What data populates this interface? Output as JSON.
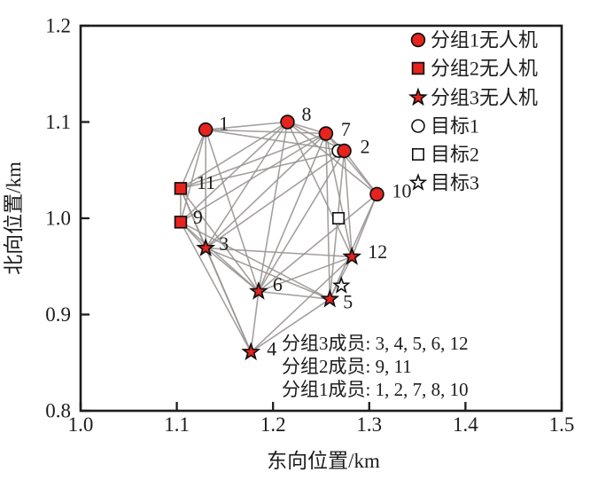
{
  "chart_data": {
    "type": "scatter",
    "title": "",
    "xlabel": "东向位置/km",
    "ylabel": "北向位置/km",
    "xlim": [
      1.0,
      1.5
    ],
    "ylim": [
      0.8,
      1.2
    ],
    "x_ticks": [
      1.0,
      1.1,
      1.2,
      1.3,
      1.4,
      1.5
    ],
    "y_ticks": [
      0.8,
      0.9,
      1.0,
      1.1,
      1.2
    ],
    "x_tick_labels": [
      "1.0",
      "1.1",
      "1.2",
      "1.3",
      "1.4",
      "1.5"
    ],
    "y_tick_labels": [
      "0.8",
      "0.9",
      "1.0",
      "1.1",
      "1.2"
    ],
    "grid": false,
    "legend_position": "top-right",
    "colors": {
      "marker_fill": "#e8231e",
      "marker_stroke": "#111111",
      "edge": "#989492",
      "axis": "#1c1c1c",
      "background": "#ffffff"
    },
    "series": [
      {
        "name": "分组1无人机",
        "marker": "circle",
        "members": [
          1,
          2,
          7,
          8,
          10
        ],
        "points": [
          {
            "id": 1,
            "x": 1.13,
            "y": 1.092,
            "label": "1",
            "label_dx": 15,
            "label_dy": -7
          },
          {
            "id": 2,
            "x": 1.274,
            "y": 1.07,
            "label": "2",
            "label_dx": 18,
            "label_dy": -5
          },
          {
            "id": 7,
            "x": 1.255,
            "y": 1.088,
            "label": "7",
            "label_dx": 17,
            "label_dy": -5
          },
          {
            "id": 8,
            "x": 1.215,
            "y": 1.1,
            "label": "8",
            "label_dx": 16,
            "label_dy": -9
          },
          {
            "id": 10,
            "x": 1.308,
            "y": 1.025,
            "label": "10",
            "label_dx": 17,
            "label_dy": -4
          }
        ]
      },
      {
        "name": "分组2无人机",
        "marker": "square",
        "members": [
          9,
          11
        ],
        "points": [
          {
            "id": 9,
            "x": 1.104,
            "y": 0.996,
            "label": "9",
            "label_dx": 14,
            "label_dy": -6
          },
          {
            "id": 11,
            "x": 1.104,
            "y": 1.031,
            "label": "11",
            "label_dx": 18,
            "label_dy": -7
          }
        ]
      },
      {
        "name": "分组3无人机",
        "marker": "star",
        "members": [
          3,
          4,
          5,
          6,
          12
        ],
        "points": [
          {
            "id": 3,
            "x": 1.13,
            "y": 0.969,
            "label": "3",
            "label_dx": 15,
            "label_dy": -5
          },
          {
            "id": 4,
            "x": 1.177,
            "y": 0.861,
            "label": "4",
            "label_dx": 18,
            "label_dy": -4
          },
          {
            "id": 5,
            "x": 1.259,
            "y": 0.916,
            "label": "5",
            "label_dx": 15,
            "label_dy": 3
          },
          {
            "id": 6,
            "x": 1.185,
            "y": 0.924,
            "label": "6",
            "label_dx": 16,
            "label_dy": -8
          },
          {
            "id": 12,
            "x": 1.282,
            "y": 0.96,
            "label": "12",
            "label_dx": 18,
            "label_dy": -6
          }
        ]
      }
    ],
    "targets": [
      {
        "name": "目标1",
        "marker": "circle",
        "x": 1.268,
        "y": 1.07
      },
      {
        "name": "目标2",
        "marker": "square",
        "x": 1.268,
        "y": 1.0
      },
      {
        "name": "目标3",
        "marker": "star",
        "x": 1.271,
        "y": 0.93
      }
    ],
    "edges": [
      [
        1,
        2
      ],
      [
        1,
        3
      ],
      [
        1,
        6
      ],
      [
        1,
        7
      ],
      [
        1,
        8
      ],
      [
        1,
        9
      ],
      [
        1,
        11
      ],
      [
        2,
        3
      ],
      [
        2,
        5
      ],
      [
        2,
        6
      ],
      [
        2,
        7
      ],
      [
        2,
        8
      ],
      [
        2,
        10
      ],
      [
        2,
        11
      ],
      [
        2,
        12
      ],
      [
        3,
        4
      ],
      [
        3,
        5
      ],
      [
        3,
        6
      ],
      [
        3,
        7
      ],
      [
        3,
        8
      ],
      [
        3,
        9
      ],
      [
        3,
        11
      ],
      [
        3,
        12
      ],
      [
        4,
        5
      ],
      [
        4,
        6
      ],
      [
        4,
        9
      ],
      [
        4,
        11
      ],
      [
        4,
        12
      ],
      [
        5,
        6
      ],
      [
        5,
        7
      ],
      [
        5,
        9
      ],
      [
        5,
        10
      ],
      [
        5,
        12
      ],
      [
        6,
        7
      ],
      [
        6,
        8
      ],
      [
        6,
        9
      ],
      [
        6,
        10
      ],
      [
        6,
        11
      ],
      [
        6,
        12
      ],
      [
        7,
        8
      ],
      [
        7,
        9
      ],
      [
        7,
        10
      ],
      [
        7,
        11
      ],
      [
        7,
        12
      ],
      [
        8,
        9
      ],
      [
        8,
        10
      ],
      [
        8,
        11
      ],
      [
        8,
        12
      ],
      [
        9,
        11
      ],
      [
        10,
        12
      ]
    ],
    "legend": [
      {
        "label": "分组1无人机",
        "marker": "circle",
        "filled": true
      },
      {
        "label": "分组2无人机",
        "marker": "square",
        "filled": true
      },
      {
        "label": "分组3无人机",
        "marker": "star",
        "filled": true
      },
      {
        "label": "目标1",
        "marker": "circle",
        "filled": false
      },
      {
        "label": "目标2",
        "marker": "square",
        "filled": false
      },
      {
        "label": "目标3",
        "marker": "star",
        "filled": false
      }
    ],
    "annotations": [
      "分组3成员: 3, 4, 5, 6, 12",
      "分组2成员: 9, 11",
      "分组1成员: 1, 2, 7, 8, 10"
    ]
  }
}
